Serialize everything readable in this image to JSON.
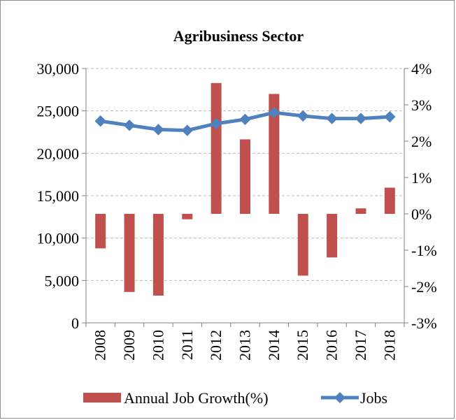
{
  "chart_data": {
    "type": "bar",
    "title": "Agribusiness Sector",
    "categories": [
      "2008",
      "2009",
      "2010",
      "2011",
      "2012",
      "2013",
      "2014",
      "2015",
      "2016",
      "2017",
      "2018"
    ],
    "series": [
      {
        "name": "Annual Job Growth(%)",
        "type": "bar",
        "axis": "right",
        "color": "#c0504d",
        "values": [
          -0.95,
          -2.15,
          -2.25,
          -0.15,
          3.6,
          2.05,
          3.3,
          -1.7,
          -1.2,
          0.15,
          0.72
        ]
      },
      {
        "name": "Jobs",
        "type": "line",
        "axis": "left",
        "color": "#4f81bd",
        "values": [
          23800,
          23300,
          22800,
          22700,
          23500,
          24000,
          24800,
          24400,
          24100,
          24100,
          24300
        ]
      }
    ],
    "y_left": {
      "min": 0,
      "max": 30000,
      "ticks": [
        "0",
        "5,000",
        "10,000",
        "15,000",
        "20,000",
        "25,000",
        "30,000"
      ]
    },
    "y_right": {
      "min": -3,
      "max": 4,
      "ticks": [
        "-3%",
        "-2%",
        "-1%",
        "0%",
        "1%",
        "2%",
        "3%",
        "4%"
      ]
    },
    "grid": true,
    "legend_position": "bottom"
  }
}
